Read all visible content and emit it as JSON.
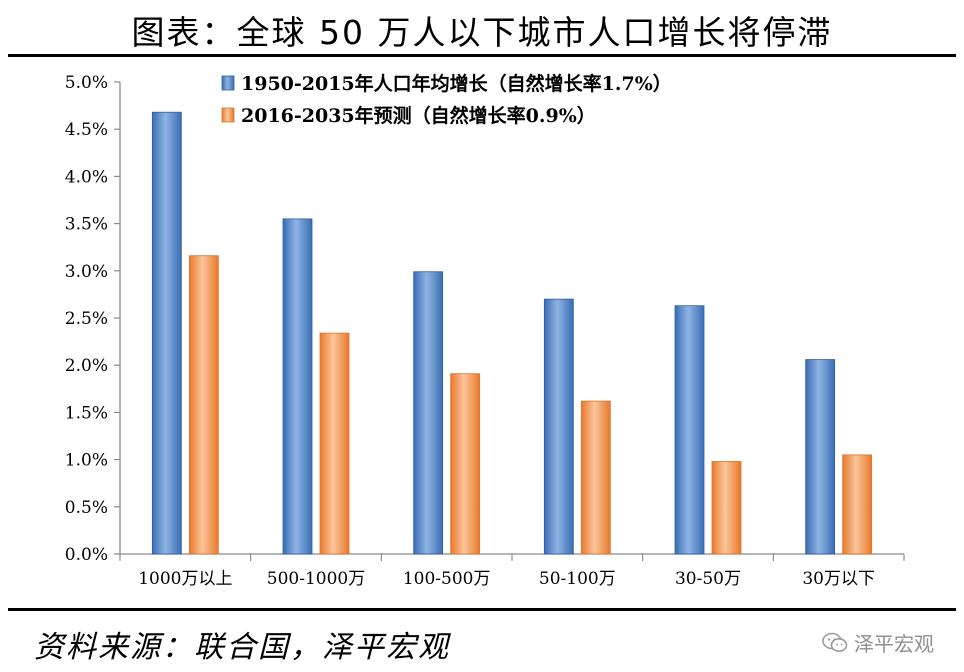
{
  "header": {
    "title": "图表：全球 50 万人以下城市人口增长将停滞"
  },
  "footer": {
    "source": "资料来源：联合国，泽平宏观",
    "watermark": "泽平宏观"
  },
  "chart_data": {
    "type": "bar",
    "categories": [
      "1000万以上",
      "500-1000万",
      "100-500万",
      "50-100万",
      "30-50万",
      "30万以下"
    ],
    "series": [
      {
        "name": "1950-2015年人口年均增长（自然增长率1.7%）",
        "color": "#4f81bd",
        "values": [
          4.68,
          3.55,
          2.99,
          2.7,
          2.63,
          2.06
        ]
      },
      {
        "name": "2016-2035年预测（自然增长率0.9%）",
        "color": "#f79646",
        "values": [
          3.16,
          2.34,
          1.91,
          1.62,
          0.98,
          1.05
        ]
      }
    ],
    "ylim": [
      0,
      5
    ],
    "yticks": [
      "0.0%",
      "0.5%",
      "1.0%",
      "1.5%",
      "2.0%",
      "2.5%",
      "3.0%",
      "3.5%",
      "4.0%",
      "4.5%",
      "5.0%"
    ],
    "legend_position": "top",
    "grid": false
  }
}
